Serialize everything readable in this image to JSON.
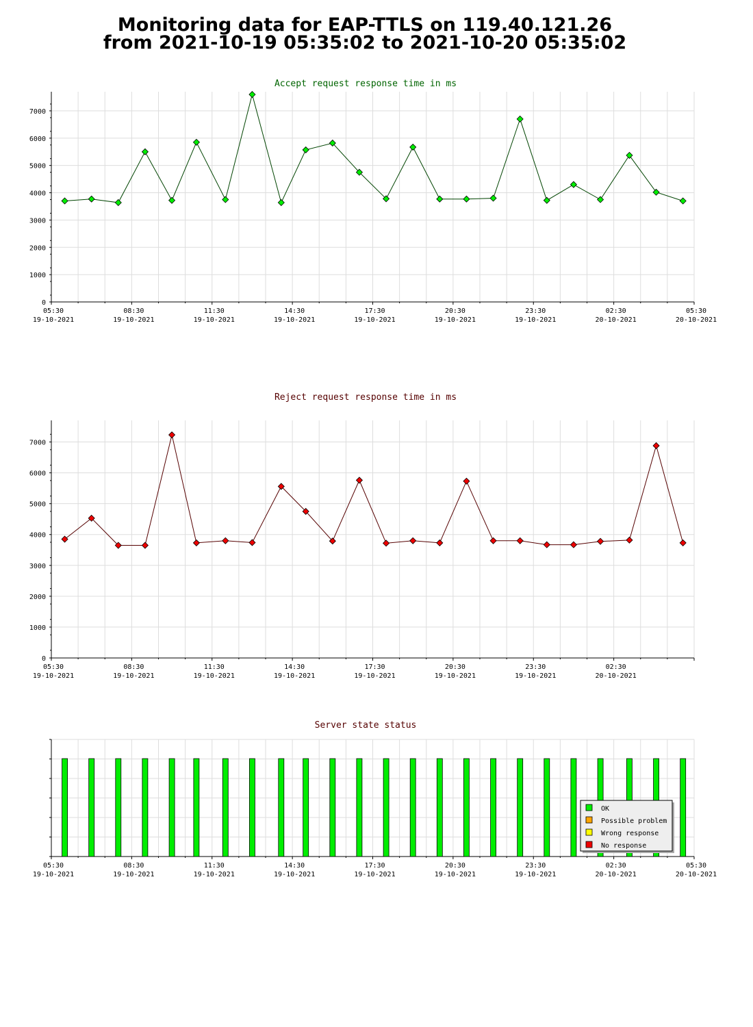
{
  "header": {
    "line1": "Monitoring data for EAP-TTLS on 119.40.121.26",
    "line2": "from 2021-10-19 05:35:02 to 2021-10-20 05:35:02"
  },
  "colors": {
    "accept_title": "#006400",
    "reject_title": "#550000",
    "status_title": "#550000",
    "accept_line": "#004400",
    "reject_line": "#550000",
    "accept_marker": "#00ee00",
    "reject_marker": "#ee0000",
    "grid": "#dddddd",
    "ok": "#00ee00",
    "possible_problem": "#ffa500",
    "wrong_response": "#ffff00",
    "no_response": "#ee0000"
  },
  "x_ticks": [
    {
      "time": "05:30",
      "date": "19-10-2021"
    },
    {
      "time": "08:30",
      "date": "19-10-2021"
    },
    {
      "time": "11:30",
      "date": "19-10-2021"
    },
    {
      "time": "14:30",
      "date": "19-10-2021"
    },
    {
      "time": "17:30",
      "date": "19-10-2021"
    },
    {
      "time": "20:30",
      "date": "19-10-2021"
    },
    {
      "time": "23:30",
      "date": "19-10-2021"
    },
    {
      "time": "02:30",
      "date": "20-10-2021"
    },
    {
      "time": "05:30",
      "date": "20-10-2021"
    }
  ],
  "x_ticks_reject": [
    {
      "time": "05:30",
      "date": "19-10-2021"
    },
    {
      "time": "08:30",
      "date": "19-10-2021"
    },
    {
      "time": "11:30",
      "date": "19-10-2021"
    },
    {
      "time": "14:30",
      "date": "19-10-2021"
    },
    {
      "time": "17:30",
      "date": "19-10-2021"
    },
    {
      "time": "20:30",
      "date": "19-10-2021"
    },
    {
      "time": "23:30",
      "date": "19-10-2021"
    },
    {
      "time": "02:30",
      "date": "20-10-2021"
    }
  ],
  "chart_data": [
    {
      "type": "line",
      "title": "Accept request response time in ms",
      "x_unit": "time (2021-10-19 05:30 to 2021-10-20 05:30)",
      "x": [
        "2021-10-19 06:00",
        "2021-10-19 07:00",
        "2021-10-19 08:00",
        "2021-10-19 09:00",
        "2021-10-19 10:00",
        "2021-10-19 10:55",
        "2021-10-19 12:00",
        "2021-10-19 13:00",
        "2021-10-19 14:05",
        "2021-10-19 15:00",
        "2021-10-19 16:00",
        "2021-10-19 17:00",
        "2021-10-19 18:00",
        "2021-10-19 19:00",
        "2021-10-19 20:00",
        "2021-10-19 21:00",
        "2021-10-19 22:00",
        "2021-10-19 23:00",
        "2021-10-20 00:00",
        "2021-10-20 01:00",
        "2021-10-20 02:00",
        "2021-10-20 03:05",
        "2021-10-20 04:05",
        "2021-10-20 05:05"
      ],
      "values": [
        3700,
        3770,
        3640,
        5500,
        3720,
        5850,
        3750,
        7600,
        3640,
        5570,
        5820,
        4750,
        3780,
        5670,
        3770,
        3770,
        3800,
        6700,
        3720,
        4300,
        3750,
        5370,
        4020,
        3700
      ],
      "ylim": [
        0,
        7700
      ],
      "yticks": [
        0,
        1000,
        2000,
        3000,
        4000,
        5000,
        6000,
        7000
      ],
      "grid": true
    },
    {
      "type": "line",
      "title": "Reject request response time in ms",
      "x_unit": "time (2021-10-19 05:30 to 2021-10-20 05:30)",
      "x": [
        "2021-10-19 06:00",
        "2021-10-19 07:00",
        "2021-10-19 08:00",
        "2021-10-19 09:00",
        "2021-10-19 10:00",
        "2021-10-19 10:55",
        "2021-10-19 12:00",
        "2021-10-19 13:00",
        "2021-10-19 14:05",
        "2021-10-19 15:00",
        "2021-10-19 16:00",
        "2021-10-19 17:00",
        "2021-10-19 18:00",
        "2021-10-19 19:00",
        "2021-10-19 20:00",
        "2021-10-19 21:00",
        "2021-10-19 22:00",
        "2021-10-19 23:00",
        "2021-10-20 00:00",
        "2021-10-20 01:00",
        "2021-10-20 02:00",
        "2021-10-20 03:05",
        "2021-10-20 04:05",
        "2021-10-20 05:05"
      ],
      "values": [
        3850,
        4530,
        3650,
        3650,
        7230,
        3730,
        3800,
        3740,
        5560,
        4750,
        3790,
        5760,
        3720,
        3800,
        3730,
        5730,
        3800,
        3800,
        3670,
        3670,
        3780,
        3820,
        6880,
        3730
      ],
      "ylim": [
        0,
        7700
      ],
      "yticks": [
        0,
        1000,
        2000,
        3000,
        4000,
        5000,
        6000,
        7000
      ],
      "grid": true
    },
    {
      "type": "bar",
      "title": "Server state status",
      "x_unit": "time (2021-10-19 05:30 to 2021-10-20 05:30)",
      "x": [
        "2021-10-19 06:00",
        "2021-10-19 07:00",
        "2021-10-19 08:00",
        "2021-10-19 09:00",
        "2021-10-19 10:00",
        "2021-10-19 10:55",
        "2021-10-19 12:00",
        "2021-10-19 13:00",
        "2021-10-19 14:05",
        "2021-10-19 15:00",
        "2021-10-19 16:00",
        "2021-10-19 17:00",
        "2021-10-19 18:00",
        "2021-10-19 19:00",
        "2021-10-19 20:00",
        "2021-10-19 21:00",
        "2021-10-19 22:00",
        "2021-10-19 23:00",
        "2021-10-20 00:00",
        "2021-10-20 01:00",
        "2021-10-20 02:00",
        "2021-10-20 03:05",
        "2021-10-20 04:05",
        "2021-10-20 05:05"
      ],
      "values": [
        "OK",
        "OK",
        "OK",
        "OK",
        "OK",
        "OK",
        "OK",
        "OK",
        "OK",
        "OK",
        "OK",
        "OK",
        "OK",
        "OK",
        "OK",
        "OK",
        "OK",
        "OK",
        "OK",
        "OK",
        "OK",
        "OK",
        "OK",
        "OK"
      ],
      "legend": [
        "OK",
        "Possible problem",
        "Wrong response",
        "No response"
      ],
      "legend_position": "bottom-right"
    }
  ]
}
